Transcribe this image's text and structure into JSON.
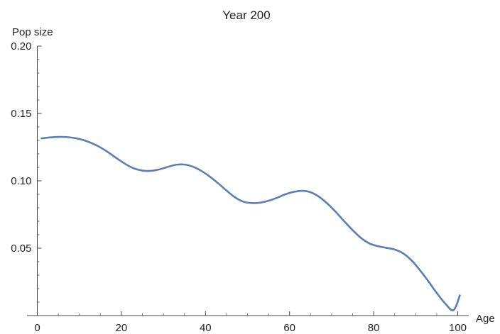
{
  "chart_data": {
    "type": "line",
    "title": "Year 200",
    "xlabel": "Age",
    "ylabel": "Pop size",
    "xlim": [
      -0.5,
      102
    ],
    "ylim": [
      0,
      0.2
    ],
    "x_ticks": [
      0,
      20,
      40,
      60,
      80,
      100
    ],
    "x_tick_labels": [
      "0",
      "20",
      "40",
      "60",
      "80",
      "100"
    ],
    "y_ticks": [
      0.05,
      0.1,
      0.15,
      0.2
    ],
    "y_tick_labels": [
      "0.05",
      "0.10",
      "0.15",
      "0.20"
    ],
    "grid": false,
    "line_color": "#5b7fb5",
    "series": [
      {
        "x": [
          1,
          3,
          5,
          7,
          9,
          11,
          13,
          15,
          17,
          19,
          21,
          23,
          25,
          27,
          29,
          31,
          33,
          35,
          37,
          39,
          41,
          43,
          45,
          47,
          49,
          51,
          53,
          55,
          57,
          59,
          61,
          63,
          65,
          67,
          69,
          71,
          73,
          75,
          77,
          79,
          81,
          83,
          85,
          87,
          89,
          91,
          93,
          95,
          97,
          99,
          100.5
        ],
        "y": [
          0.1315,
          0.1322,
          0.1326,
          0.1325,
          0.1317,
          0.1302,
          0.1279,
          0.1248,
          0.1209,
          0.1165,
          0.1124,
          0.1092,
          0.1076,
          0.1074,
          0.1085,
          0.1103,
          0.1119,
          0.1121,
          0.1105,
          0.1074,
          0.1032,
          0.0982,
          0.0928,
          0.0878,
          0.0845,
          0.0835,
          0.0838,
          0.0852,
          0.0874,
          0.09,
          0.0918,
          0.0926,
          0.0915,
          0.0882,
          0.0831,
          0.0769,
          0.07,
          0.0634,
          0.0576,
          0.0535,
          0.0515,
          0.0503,
          0.049,
          0.0462,
          0.041,
          0.0337,
          0.0255,
          0.0168,
          0.009,
          0.004,
          0.015
        ]
      }
    ]
  }
}
